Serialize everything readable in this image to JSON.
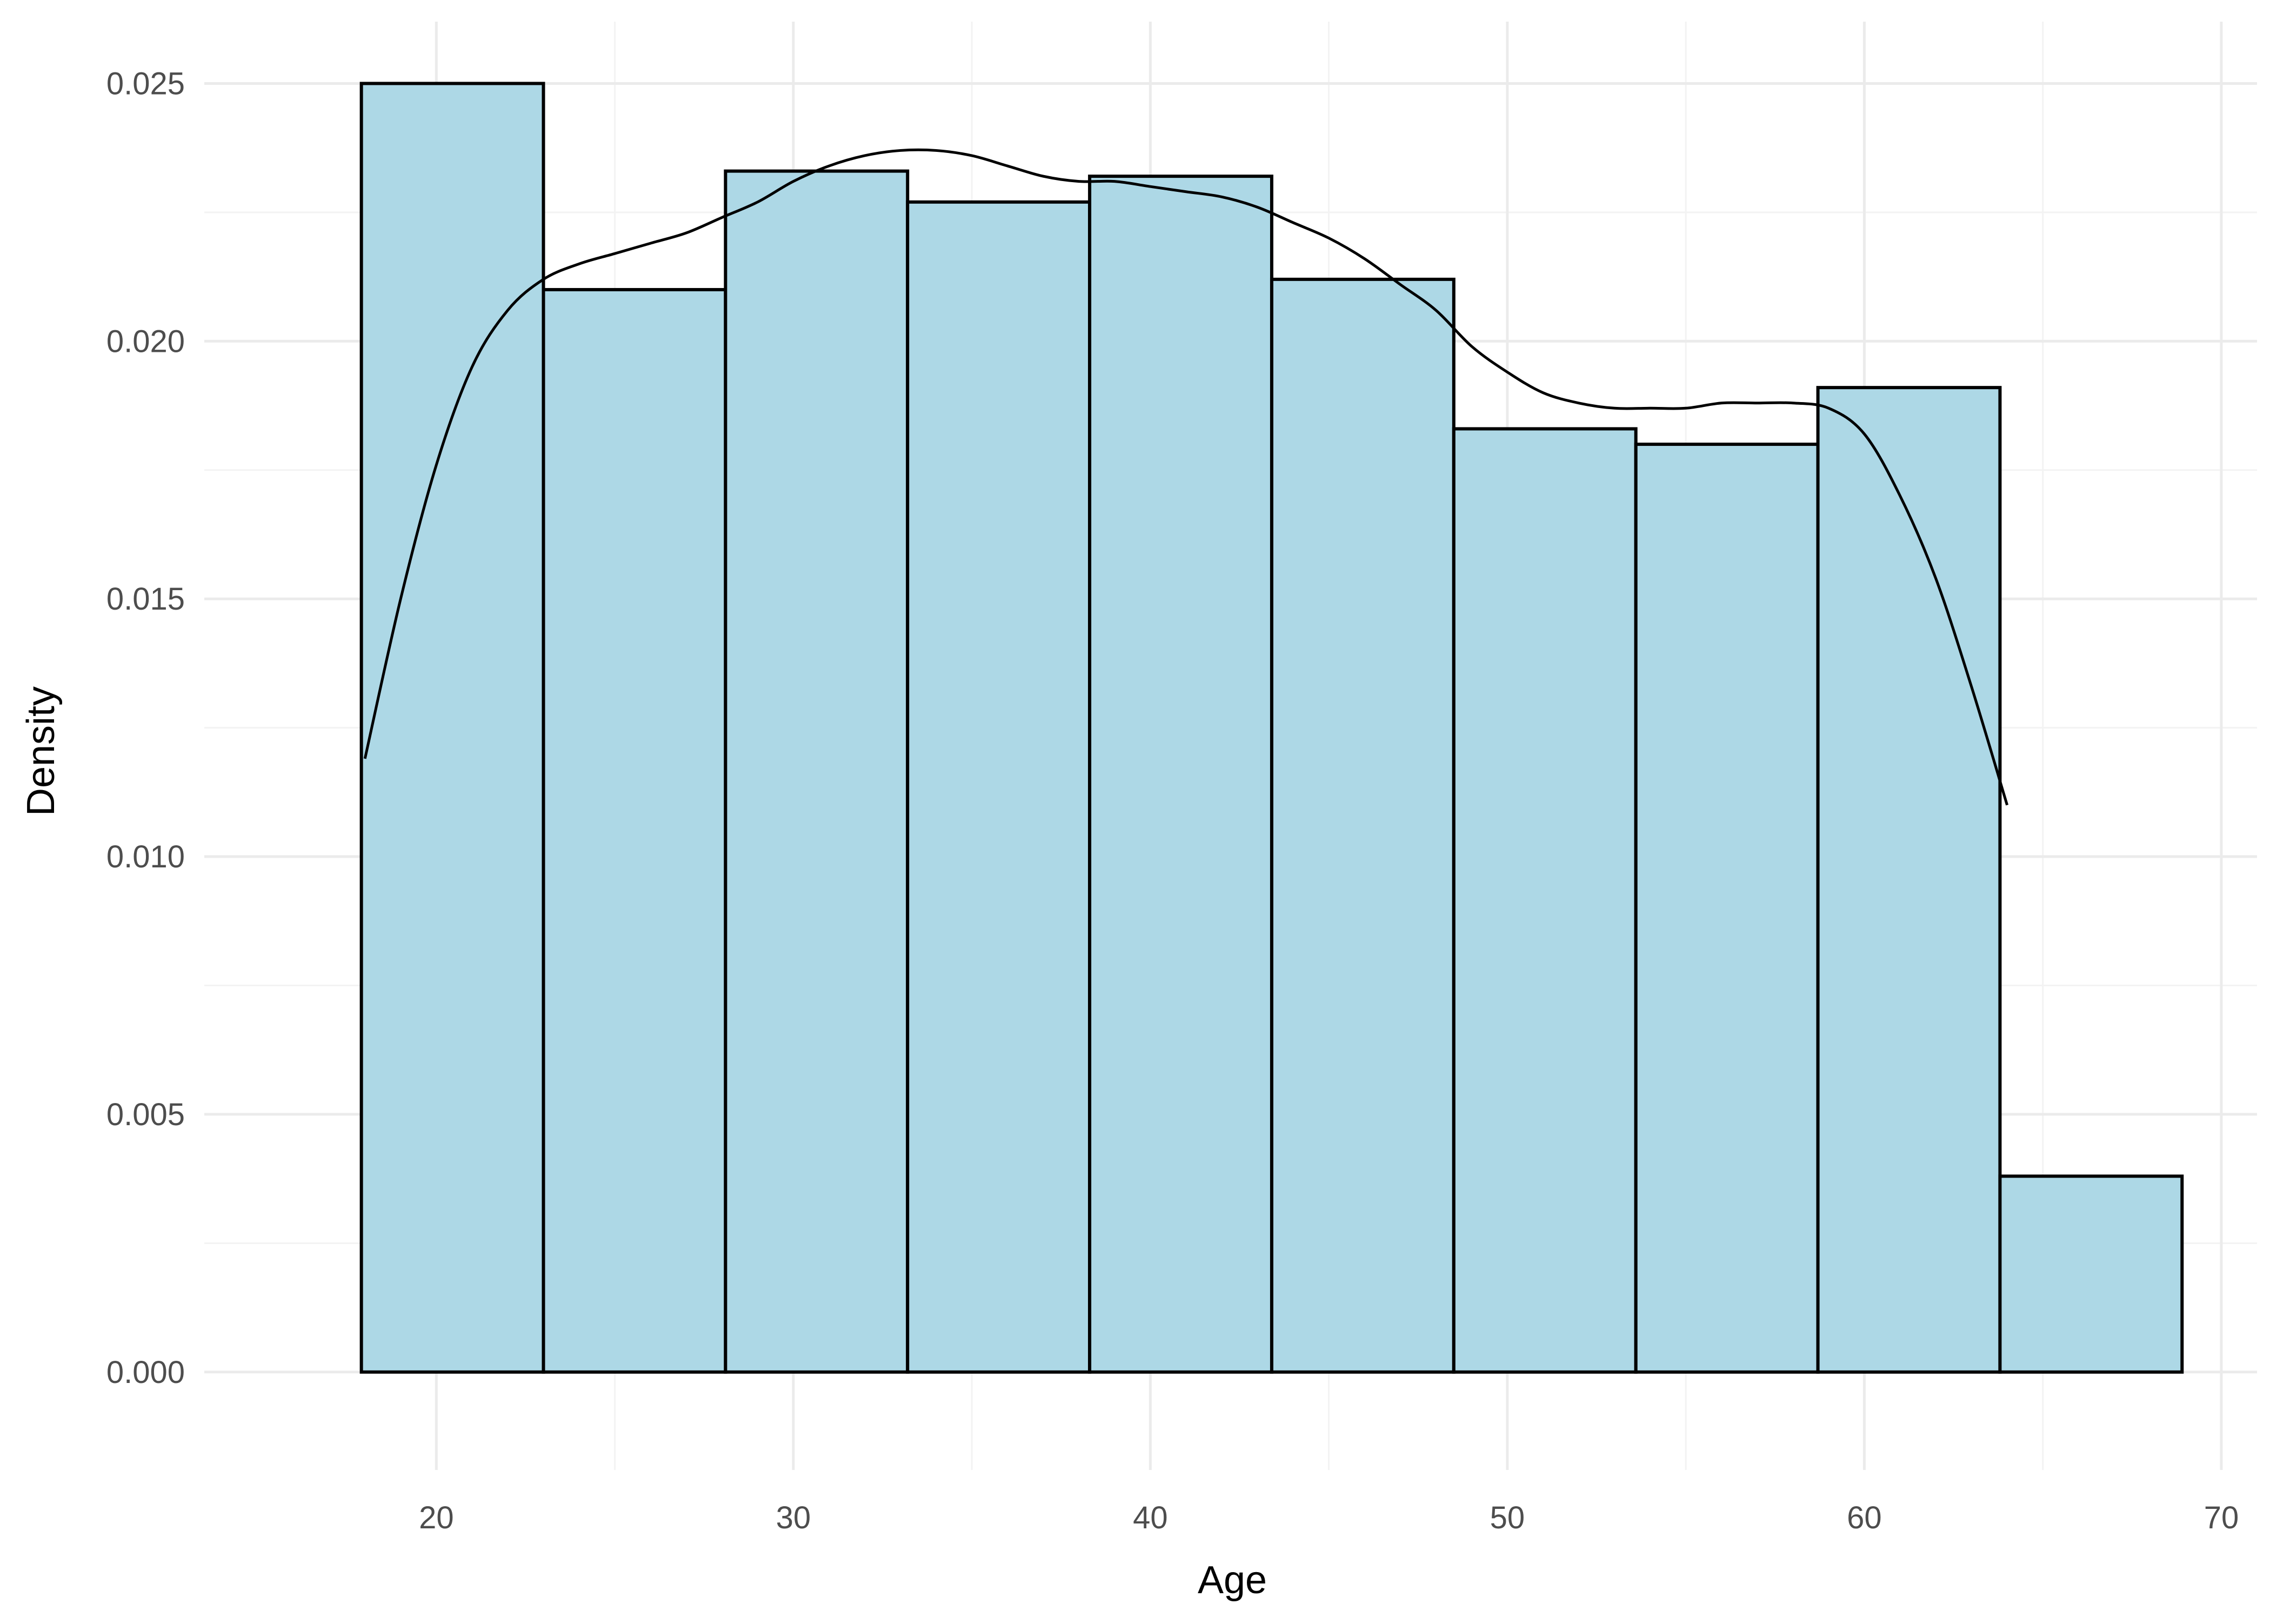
{
  "chart_data": {
    "type": "histogram",
    "xlabel": "Age",
    "ylabel": "Density",
    "xlim": [
      13.5,
      71
    ],
    "ylim": [
      -0.0019,
      0.0262
    ],
    "x_ticks": [
      20,
      30,
      40,
      50,
      60,
      70
    ],
    "x_tick_labels": [
      "20",
      "30",
      "40",
      "50",
      "60",
      "70"
    ],
    "y_ticks": [
      0,
      0.005,
      0.01,
      0.015,
      0.02,
      0.025
    ],
    "y_tick_labels": [
      "0.000",
      "0.005",
      "0.010",
      "0.015",
      "0.020",
      "0.025"
    ],
    "grid": true,
    "bins": [
      {
        "x0": 17.9,
        "x1": 23.0,
        "density": 0.025
      },
      {
        "x0": 23.0,
        "x1": 28.1,
        "density": 0.021
      },
      {
        "x0": 28.1,
        "x1": 33.2,
        "density": 0.0233
      },
      {
        "x0": 33.2,
        "x1": 38.3,
        "density": 0.0227
      },
      {
        "x0": 38.3,
        "x1": 43.4,
        "density": 0.0232
      },
      {
        "x0": 43.4,
        "x1": 48.5,
        "density": 0.0212
      },
      {
        "x0": 48.5,
        "x1": 53.6,
        "density": 0.0183
      },
      {
        "x0": 53.6,
        "x1": 58.7,
        "density": 0.018
      },
      {
        "x0": 58.7,
        "x1": 63.8,
        "density": 0.0191
      },
      {
        "x0": 63.8,
        "x1": 68.9,
        "density": 0.0038
      }
    ],
    "density_curve": {
      "x": [
        18,
        19,
        20,
        21,
        22,
        23,
        24,
        25,
        26,
        27,
        28,
        29,
        30,
        31,
        32,
        33,
        34,
        35,
        36,
        37,
        38,
        39,
        40,
        41,
        42,
        43,
        44,
        45,
        46,
        47,
        48,
        49,
        50,
        51,
        52,
        53,
        54,
        55,
        56,
        57,
        58,
        59,
        60,
        61,
        62,
        63,
        64
      ],
      "y": [
        0.0119,
        0.015,
        0.0176,
        0.0195,
        0.0206,
        0.0212,
        0.0215,
        0.0217,
        0.0219,
        0.0221,
        0.0224,
        0.0227,
        0.0231,
        0.0234,
        0.0236,
        0.0237,
        0.0237,
        0.0236,
        0.0234,
        0.0232,
        0.0231,
        0.0231,
        0.023,
        0.0229,
        0.0228,
        0.0226,
        0.0223,
        0.022,
        0.0216,
        0.0211,
        0.0206,
        0.0199,
        0.0194,
        0.019,
        0.0188,
        0.0187,
        0.0187,
        0.0187,
        0.0188,
        0.0188,
        0.0188,
        0.0187,
        0.0182,
        0.017,
        0.0154,
        0.0133,
        0.011
      ]
    },
    "colors": {
      "bar_fill": "#add8e6",
      "bar_outline": "#000000",
      "curve": "#000000",
      "grid": "#ebebeb"
    }
  }
}
